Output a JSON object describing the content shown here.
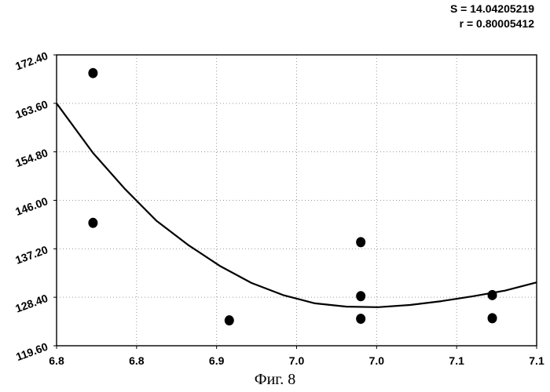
{
  "stats": {
    "s_line": "S = 14.04205219",
    "r_line": "r = 0.80005412"
  },
  "caption": "Фиг. 8",
  "chart_data": {
    "type": "scatter",
    "title": "",
    "xlabel": "",
    "ylabel": "",
    "xlim": [
      6.797,
      7.1
    ],
    "ylim": [
      119.6,
      172.4
    ],
    "grid": true,
    "grid_style": "dotted",
    "x_tick_values": [
      6.797,
      6.8475,
      6.898,
      6.9485,
      6.999,
      7.0495,
      7.1
    ],
    "x_tick_labels": [
      "6.8",
      "6.8",
      "6.9",
      "7.0",
      "7.0",
      "7.1",
      "7.1"
    ],
    "y_tick_values": [
      119.6,
      128.4,
      137.2,
      146.0,
      154.8,
      163.6,
      172.4
    ],
    "y_tick_labels": [
      "119.60",
      "128.40",
      "137.20",
      "146.00",
      "154.80",
      "163.60",
      "172.40"
    ],
    "points": [
      {
        "x": 6.82,
        "y": 169.1
      },
      {
        "x": 6.82,
        "y": 141.9
      },
      {
        "x": 6.906,
        "y": 124.2
      },
      {
        "x": 6.989,
        "y": 138.4
      },
      {
        "x": 6.989,
        "y": 128.6
      },
      {
        "x": 6.989,
        "y": 124.5
      },
      {
        "x": 7.072,
        "y": 128.8
      },
      {
        "x": 7.072,
        "y": 124.6
      }
    ],
    "fit_curve": {
      "type": "quadratic",
      "x": [
        6.797,
        6.82,
        6.84,
        6.86,
        6.88,
        6.9,
        6.92,
        6.94,
        6.96,
        6.98,
        7.0,
        7.02,
        7.04,
        7.06,
        7.08,
        7.1
      ],
      "y": [
        163.6,
        154.6,
        148.1,
        142.3,
        137.9,
        134.1,
        131.0,
        128.8,
        127.3,
        126.7,
        126.6,
        127.0,
        127.7,
        128.6,
        129.6,
        131.1
      ]
    },
    "colors": {
      "points": "#000000",
      "curve": "#000000",
      "grid": "#9a9a9a",
      "axis": "#000000"
    }
  }
}
